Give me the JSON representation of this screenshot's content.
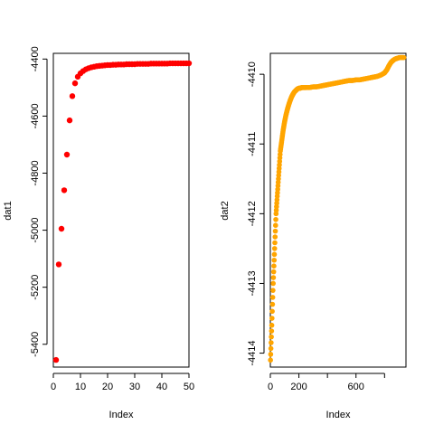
{
  "chart_data": [
    {
      "type": "scatter",
      "xlabel": "Index",
      "ylabel": "dat1",
      "xlim": [
        0,
        50
      ],
      "ylim": [
        -5480,
        -4380
      ],
      "xticks": [
        0,
        10,
        20,
        30,
        40,
        50
      ],
      "xtick_labels": [
        "0",
        "10",
        "20",
        "30",
        "40",
        "50"
      ],
      "yticks": [
        -5400,
        -5200,
        -5000,
        -4800,
        -4600,
        -4400
      ],
      "ytick_labels": [
        "-5400",
        "-5200",
        "-5000",
        "-4800",
        "-4600",
        "-4400"
      ],
      "grid": false,
      "color": "#ff0000",
      "x": [
        1,
        2,
        3,
        4,
        5,
        6,
        7,
        8,
        9,
        10,
        11,
        12,
        13,
        14,
        15,
        16,
        17,
        18,
        19,
        20,
        21,
        22,
        23,
        24,
        25,
        26,
        27,
        28,
        29,
        30,
        31,
        32,
        33,
        34,
        35,
        36,
        37,
        38,
        39,
        40,
        41,
        42,
        43,
        44,
        45,
        46,
        47,
        48,
        49,
        50
      ],
      "y": [
        -5455,
        -5120,
        -4995,
        -4860,
        -4735,
        -4615,
        -4530,
        -4485,
        -4462,
        -4450,
        -4442,
        -4436,
        -4432,
        -4429,
        -4427,
        -4425,
        -4424,
        -4423,
        -4422,
        -4421,
        -4421,
        -4420,
        -4420,
        -4419,
        -4419,
        -4419,
        -4418,
        -4418,
        -4418,
        -4418,
        -4417,
        -4417,
        -4417,
        -4417,
        -4417,
        -4416,
        -4416,
        -4416,
        -4416,
        -4416,
        -4416,
        -4416,
        -4415,
        -4415,
        -4415,
        -4415,
        -4415,
        -4415,
        -4415,
        -4415
      ]
    },
    {
      "type": "scatter",
      "xlabel": "Index",
      "ylabel": "dat2",
      "xlim": [
        0,
        950
      ],
      "ylim": [
        -4414.2,
        -4409.7
      ],
      "xticks": [
        0,
        200,
        400,
        600,
        800
      ],
      "xtick_labels": [
        "0",
        "200",
        "",
        "600",
        ""
      ],
      "yticks": [
        -4414,
        -4413,
        -4412,
        -4411,
        -4410
      ],
      "ytick_labels": [
        "-4414",
        "-4413",
        "-4412",
        "-4411",
        "-4410"
      ],
      "grid": false,
      "color": "#ffa500",
      "x": [
        1,
        10,
        20,
        30,
        40,
        50,
        60,
        70,
        80,
        90,
        100,
        110,
        120,
        130,
        140,
        150,
        160,
        170,
        180,
        190,
        200,
        210,
        220,
        230,
        240,
        250,
        275,
        300,
        325,
        350,
        375,
        400,
        425,
        450,
        475,
        500,
        525,
        550,
        575,
        600,
        625,
        650,
        675,
        700,
        725,
        750,
        775,
        800,
        815,
        830,
        845,
        860,
        875,
        890,
        905,
        920,
        935
      ],
      "y": [
        -4414.1,
        -4413.6,
        -4413.0,
        -4412.5,
        -4412.0,
        -4411.7,
        -4411.4,
        -4411.1,
        -4410.95,
        -4410.8,
        -4410.68,
        -4410.58,
        -4410.5,
        -4410.43,
        -4410.37,
        -4410.32,
        -4410.28,
        -4410.25,
        -4410.23,
        -4410.21,
        -4410.2,
        -4410.2,
        -4410.19,
        -4410.19,
        -4410.19,
        -4410.19,
        -4410.19,
        -4410.18,
        -4410.18,
        -4410.17,
        -4410.16,
        -4410.15,
        -4410.14,
        -4410.13,
        -4410.12,
        -4410.11,
        -4410.1,
        -4410.09,
        -4410.09,
        -4410.08,
        -4410.08,
        -4410.07,
        -4410.06,
        -4410.05,
        -4410.04,
        -4410.03,
        -4410.01,
        -4409.98,
        -4409.94,
        -4409.88,
        -4409.83,
        -4409.8,
        -4409.78,
        -4409.77,
        -4409.76,
        -4409.76,
        -4409.76
      ]
    }
  ]
}
